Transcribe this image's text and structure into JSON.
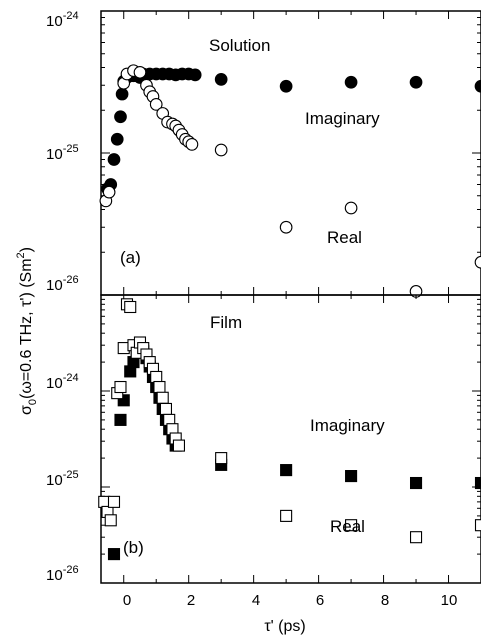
{
  "chart_data": [
    {
      "panel": "(a)",
      "type": "scatter",
      "title": "Solution",
      "y_scale": "log",
      "ylim": [
        1e-26,
        1e-24
      ],
      "xlim": [
        -0.7,
        11
      ],
      "y_ticks": [
        {
          "base": "10",
          "exp": "-24"
        },
        {
          "base": "10",
          "exp": "-25"
        },
        {
          "base": "10",
          "exp": "-26"
        }
      ],
      "annotations": [
        "Solution",
        "Imaginary",
        "Real",
        "(a)"
      ],
      "series": [
        {
          "name": "Imaginary",
          "marker": "filled-circle",
          "points": [
            [
              -0.5,
              5.6e-26
            ],
            [
              -0.4,
              6e-26
            ],
            [
              -0.3,
              9e-26
            ],
            [
              -0.2,
              1.25e-25
            ],
            [
              -0.1,
              1.8e-25
            ],
            [
              -0.05,
              2.6e-25
            ],
            [
              0.0,
              3.2e-25
            ],
            [
              0.1,
              3.4e-25
            ],
            [
              0.2,
              3.5e-25
            ],
            [
              0.3,
              3.5e-25
            ],
            [
              0.4,
              3.5e-25
            ],
            [
              0.5,
              3.4e-25
            ],
            [
              0.6,
              3.6e-25
            ],
            [
              0.8,
              3.6e-25
            ],
            [
              1.0,
              3.6e-25
            ],
            [
              1.2,
              3.6e-25
            ],
            [
              1.4,
              3.6e-25
            ],
            [
              1.6,
              3.55e-25
            ],
            [
              1.8,
              3.6e-25
            ],
            [
              2.0,
              3.6e-25
            ],
            [
              2.2,
              3.55e-25
            ],
            [
              3.0,
              3.3e-25
            ],
            [
              5.0,
              2.95e-25
            ],
            [
              7.0,
              3.15e-25
            ],
            [
              9.0,
              3.15e-25
            ],
            [
              11.0,
              2.95e-25
            ]
          ]
        },
        {
          "name": "Real",
          "marker": "open-circle",
          "points": [
            [
              -0.55,
              4.6e-26
            ],
            [
              -0.45,
              5.3e-26
            ],
            [
              0.0,
              3.1e-25
            ],
            [
              0.1,
              3.6e-25
            ],
            [
              0.3,
              3.8e-25
            ],
            [
              0.5,
              3.7e-25
            ],
            [
              0.7,
              3e-25
            ],
            [
              0.8,
              2.7e-25
            ],
            [
              0.9,
              2.5e-25
            ],
            [
              1.0,
              2.2e-25
            ],
            [
              1.2,
              1.9e-25
            ],
            [
              1.35,
              1.65e-25
            ],
            [
              1.5,
              1.6e-25
            ],
            [
              1.6,
              1.55e-25
            ],
            [
              1.7,
              1.45e-25
            ],
            [
              1.8,
              1.35e-25
            ],
            [
              1.9,
              1.25e-25
            ],
            [
              2.0,
              1.2e-25
            ],
            [
              2.1,
              1.15e-25
            ],
            [
              3.0,
              1.05e-25
            ],
            [
              5.0,
              3e-26
            ],
            [
              7.0,
              4.1e-26
            ],
            [
              9.0,
              1.06e-26
            ],
            [
              11.0,
              1.7e-26
            ]
          ]
        }
      ]
    },
    {
      "panel": "(b)",
      "type": "scatter",
      "title": "Film",
      "y_scale": "log",
      "ylim": [
        1e-26,
        1e-23
      ],
      "xlim": [
        -0.7,
        11
      ],
      "y_ticks": [
        {
          "base": "10",
          "exp": "-24"
        },
        {
          "base": "10",
          "exp": "-25"
        },
        {
          "base": "10",
          "exp": "-26"
        }
      ],
      "annotations": [
        "Film",
        "Imaginary",
        "Real",
        "(b)"
      ],
      "series": [
        {
          "name": "Imaginary",
          "marker": "filled-square",
          "points": [
            [
              -0.3,
              2e-26
            ],
            [
              -0.1,
              5e-25
            ],
            [
              0.0,
              8e-25
            ],
            [
              0.2,
              1.6e-24
            ],
            [
              0.3,
              2e-24
            ],
            [
              0.4,
              2.6e-24
            ],
            [
              0.5,
              2.8e-24
            ],
            [
              0.6,
              2.6e-24
            ],
            [
              0.7,
              2.2e-24
            ],
            [
              0.8,
              1.8e-24
            ],
            [
              0.9,
              1.4e-24
            ],
            [
              1.0,
              1.1e-24
            ],
            [
              1.1,
              8.5e-25
            ],
            [
              1.2,
              6.5e-25
            ],
            [
              1.3,
              5e-25
            ],
            [
              1.4,
              4e-25
            ],
            [
              1.5,
              3.2e-25
            ],
            [
              1.6,
              2.7e-25
            ],
            [
              3.0,
              1.7e-25
            ],
            [
              5.0,
              1.5e-25
            ],
            [
              7.0,
              1.3e-25
            ],
            [
              9.0,
              1.1e-25
            ],
            [
              11.0,
              1.1e-25
            ]
          ]
        },
        {
          "name": "Real",
          "marker": "open-square",
          "points": [
            [
              -0.6,
              7e-26
            ],
            [
              -0.5,
              5.5e-26
            ],
            [
              -0.4,
              4.5e-26
            ],
            [
              -0.3,
              7e-26
            ],
            [
              -0.2,
              9.5e-25
            ],
            [
              -0.1,
              1.1e-24
            ],
            [
              0.0,
              2.8e-24
            ],
            [
              0.1,
              8e-24
            ],
            [
              0.2,
              7.5e-24
            ],
            [
              0.3,
              3e-24
            ],
            [
              0.4,
              2.5e-24
            ],
            [
              0.5,
              3.2e-24
            ],
            [
              0.6,
              2.8e-24
            ],
            [
              0.7,
              2.4e-24
            ],
            [
              0.8,
              2e-24
            ],
            [
              0.9,
              1.7e-24
            ],
            [
              1.0,
              1.4e-24
            ],
            [
              1.1,
              1.1e-24
            ],
            [
              1.2,
              8.5e-25
            ],
            [
              1.3,
              6.5e-25
            ],
            [
              1.4,
              5e-25
            ],
            [
              1.5,
              4e-25
            ],
            [
              1.6,
              3.2e-25
            ],
            [
              1.7,
              2.7e-25
            ],
            [
              3.0,
              2e-25
            ],
            [
              5.0,
              5e-26
            ],
            [
              7.0,
              4e-26
            ],
            [
              9.0,
              3e-26
            ],
            [
              11.0,
              4e-26
            ]
          ]
        }
      ]
    }
  ],
  "x_axis": {
    "label": "τ' (ps)",
    "ticks": [
      "0",
      "2",
      "4",
      "6",
      "8",
      "10"
    ]
  },
  "y_axis": {
    "label_main": "σ",
    "label_sub": "0",
    "label_tail": "(ω=0.6 THz, τ')  (Sm",
    "label_unit_sup": "2",
    "label_close": ")"
  }
}
